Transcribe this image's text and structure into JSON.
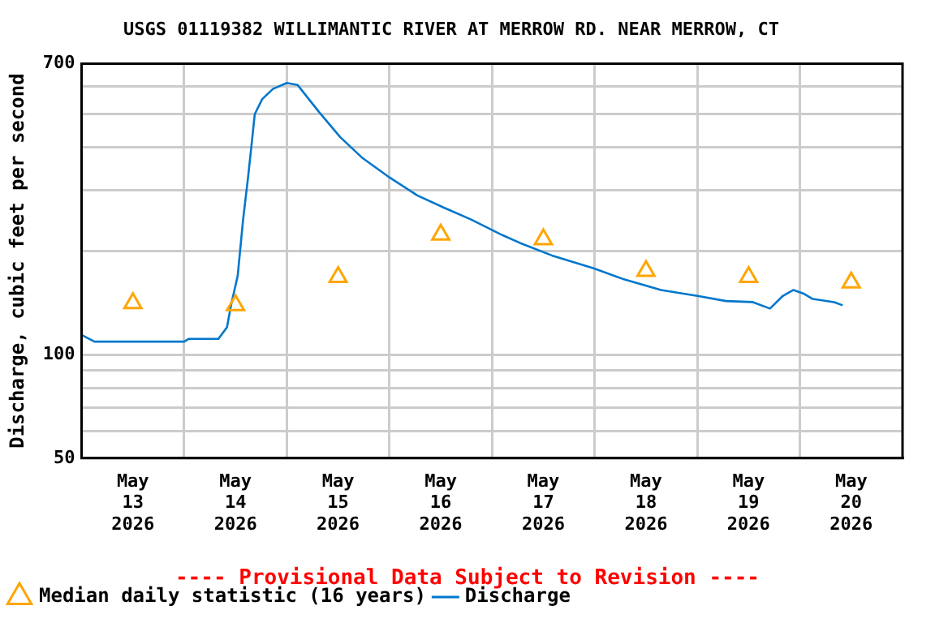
{
  "chart_data": {
    "type": "line",
    "title": "USGS 01119382 WILLIMANTIC RIVER AT MERROW RD. NEAR MERROW, CT",
    "ylabel": "Discharge, cubic feet per second",
    "annotations": [
      {
        "text": "---- Provisional Data Subject to Revision ----"
      }
    ],
    "x": [
      "2026-05-13T00:00",
      "2026-05-13T03:00",
      "2026-05-14T00:00",
      "2026-05-14T01:00",
      "2026-05-14T08:00",
      "2026-05-14T10:00",
      "2026-05-14T11:00",
      "2026-05-14T12:30",
      "2026-05-14T13:45",
      "2026-05-14T15:00",
      "2026-05-14T15:45",
      "2026-05-14T16:30",
      "2026-05-14T18:15",
      "2026-05-14T20:45",
      "2026-05-15T00:00",
      "2026-05-15T02:30",
      "2026-05-15T07:30",
      "2026-05-15T12:30",
      "2026-05-15T17:30",
      "2026-05-16T00:00",
      "2026-05-16T06:30",
      "2026-05-16T12:45",
      "2026-05-16T19:00",
      "2026-05-17T02:30",
      "2026-05-17T06:30",
      "2026-05-17T14:00",
      "2026-05-17T23:45",
      "2026-05-18T06:30",
      "2026-05-18T15:30",
      "2026-05-19T00:00",
      "2026-05-19T06:45",
      "2026-05-19T13:00",
      "2026-05-19T17:00",
      "2026-05-19T20:00",
      "2026-05-19T22:30",
      "2026-05-20T01:00",
      "2026-05-20T03:00",
      "2026-05-20T08:00",
      "2026-05-20T10:00"
    ],
    "series": [
      {
        "name": "Median daily statistic (16 years)",
        "type": "scatter",
        "marker": "triangle",
        "color": "#ffa500",
        "x": [
          "2026-05-13T12:00",
          "2026-05-14T12:00",
          "2026-05-15T12:00",
          "2026-05-16T12:00",
          "2026-05-17T12:00",
          "2026-05-18T12:00",
          "2026-05-19T12:00",
          "2026-05-20T12:00"
        ],
        "values": [
          141,
          139,
          168,
          223,
          216,
          175,
          168,
          162
        ]
      },
      {
        "name": "Discharge",
        "color": "#0077cc",
        "values": [
          114,
          109,
          109,
          111,
          111,
          120,
          140,
          169,
          245,
          333,
          407,
          499,
          552,
          591,
          615,
          607,
          507,
          428,
          374,
          327,
          290,
          267,
          247,
          222,
          211,
          194,
          178,
          166,
          154,
          148,
          143,
          142,
          136,
          148,
          154,
          150,
          145,
          142,
          139
        ]
      }
    ],
    "xlim": [
      "2026-05-13T00:00",
      "2026-05-21T00:00"
    ],
    "xticks": [
      {
        "value": "2026-05-13T12:00",
        "label": "May 13 2026"
      },
      {
        "value": "2026-05-14T00:00",
        "label": null
      },
      {
        "value": "2026-05-14T12:00",
        "label": "May 14 2026"
      },
      {
        "value": "2026-05-15T00:00",
        "label": null
      },
      {
        "value": "2026-05-15T12:00",
        "label": "May 15 2026"
      },
      {
        "value": "2026-05-16T00:00",
        "label": null
      },
      {
        "value": "2026-05-16T12:00",
        "label": "May 16 2026"
      },
      {
        "value": "2026-05-17T00:00",
        "label": null
      },
      {
        "value": "2026-05-17T12:00",
        "label": "May 17 2026"
      },
      {
        "value": "2026-05-18T00:00",
        "label": null
      },
      {
        "value": "2026-05-18T12:00",
        "label": "May 18 2026"
      },
      {
        "value": "2026-05-19T00:00",
        "label": null
      },
      {
        "value": "2026-05-19T12:00",
        "label": "May 19 2026"
      },
      {
        "value": "2026-05-20T00:00",
        "label": null
      },
      {
        "value": "2026-05-20T12:00",
        "label": "May 20 2026"
      }
    ],
    "ylim": [
      50,
      700
    ],
    "yticks": [
      50,
      {
        "value": 60,
        "label": null
      },
      {
        "value": 70,
        "label": null
      },
      {
        "value": 80,
        "label": null
      },
      {
        "value": 90,
        "label": null
      },
      100,
      {
        "value": 200,
        "label": null
      },
      {
        "value": 300,
        "label": null
      },
      {
        "value": 400,
        "label": null
      },
      {
        "value": 500,
        "label": null
      },
      {
        "value": 600,
        "label": null
      },
      700
    ],
    "log": "y",
    "grid": true,
    "legend": "bottom"
  }
}
